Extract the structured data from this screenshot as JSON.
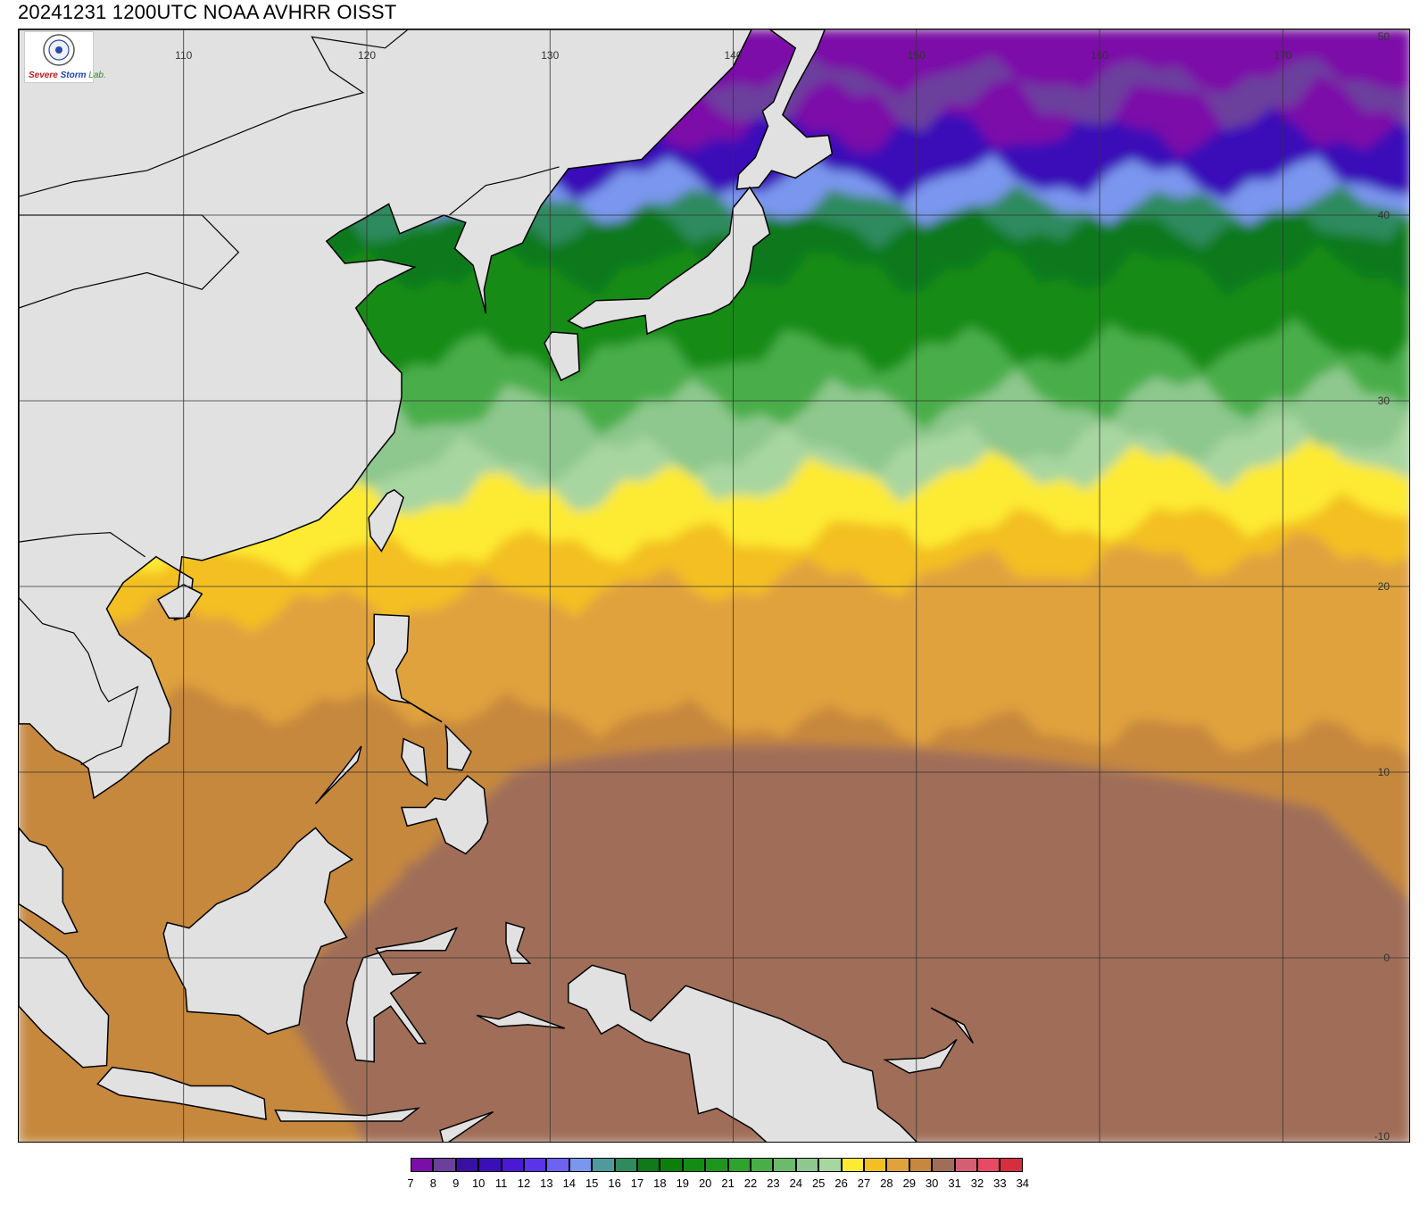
{
  "title": "20241231 1200UTC NOAA AVHRR OISST",
  "logo": {
    "part1": "Severe",
    "part2": "Storm",
    "part3": "Lab."
  },
  "map": {
    "projection": "equirectangular",
    "lon_range": [
      101,
      177
    ],
    "lat_range": [
      -10,
      50
    ],
    "lon_ticks": [
      110,
      120,
      130,
      140,
      150,
      160,
      170
    ],
    "lat_ticks": [
      50,
      40,
      30,
      20,
      10,
      0,
      -10
    ],
    "land_color": "#e1e1e1",
    "coast_color": "#000000",
    "grid_color": "#333333"
  },
  "colorbar": {
    "labels": [
      "7",
      "8",
      "9",
      "10",
      "11",
      "12",
      "13",
      "14",
      "15",
      "16",
      "17",
      "18",
      "19",
      "20",
      "21",
      "22",
      "23",
      "24",
      "25",
      "26",
      "27",
      "28",
      "29",
      "30",
      "31",
      "32",
      "33",
      "34"
    ],
    "colors": [
      "#7b0ea8",
      "#6b3f9c",
      "#3a10a4",
      "#3b0fb8",
      "#4b18d4",
      "#5a34e8",
      "#6e62f0",
      "#7a96ee",
      "#4f9a9a",
      "#2f8a5e",
      "#10791a",
      "#0a800a",
      "#128c12",
      "#1e961e",
      "#2ea32e",
      "#48ae48",
      "#6cba6c",
      "#8ec88e",
      "#a8d6a0",
      "#fdea32",
      "#f3bf22",
      "#e0a23c",
      "#c6883e",
      "#a06e58",
      "#d65e72",
      "#e84a64",
      "#d62e3e"
    ]
  }
}
